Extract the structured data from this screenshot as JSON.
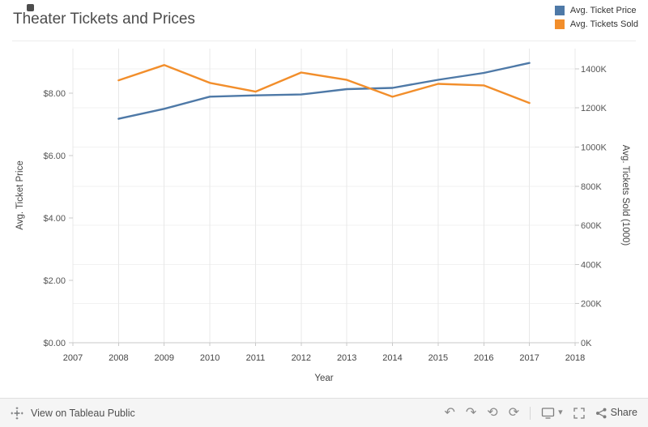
{
  "header": {
    "title": "Theater Tickets and Prices"
  },
  "legend": {
    "items": [
      {
        "label": "Avg. Ticket Price",
        "color": "#4e79a7"
      },
      {
        "label": "Avg. Tickets Sold",
        "color": "#f28e2b"
      }
    ]
  },
  "chart_data": {
    "type": "line",
    "title": "Theater Tickets and Prices",
    "xlabel": "Year",
    "x_tick_labels": [
      "2007",
      "2008",
      "2009",
      "2010",
      "2011",
      "2012",
      "2013",
      "2014",
      "2015",
      "2016",
      "2017",
      "2018"
    ],
    "x": [
      2008,
      2009,
      2010,
      2011,
      2012,
      2013,
      2014,
      2015,
      2016,
      2017
    ],
    "series": [
      {
        "name": "Avg. Ticket Price",
        "axis": "left",
        "color": "#4e79a7",
        "values": [
          7.18,
          7.5,
          7.89,
          7.93,
          7.96,
          8.13,
          8.17,
          8.43,
          8.65,
          8.97
        ]
      },
      {
        "name": "Avg. Tickets Sold",
        "axis": "right",
        "color": "#f28e2b",
        "values": [
          1341,
          1419,
          1328,
          1283,
          1381,
          1343,
          1257,
          1323,
          1315,
          1225
        ]
      }
    ],
    "left_axis": {
      "label": "Avg. Ticket Price",
      "range": [
        0,
        9.43
      ],
      "ticks": [
        {
          "value": 0,
          "label": "$0.00"
        },
        {
          "value": 2,
          "label": "$2.00"
        },
        {
          "value": 4,
          "label": "$4.00"
        },
        {
          "value": 6,
          "label": "$6.00"
        },
        {
          "value": 8,
          "label": "$8.00"
        }
      ]
    },
    "right_axis": {
      "label": "Avg. Tickets Sold (1000)",
      "range": [
        0,
        1503
      ],
      "ticks": [
        {
          "value": 0,
          "label": "0K"
        },
        {
          "value": 200,
          "label": "200K"
        },
        {
          "value": 400,
          "label": "400K"
        },
        {
          "value": 600,
          "label": "600K"
        },
        {
          "value": 800,
          "label": "800K"
        },
        {
          "value": 1000,
          "label": "1000K"
        },
        {
          "value": 1200,
          "label": "1200K"
        },
        {
          "value": 1400,
          "label": "1400K"
        }
      ]
    },
    "grid": true,
    "legend_position": "top-right"
  },
  "toolbar": {
    "view_on_label": "View on Tableau Public",
    "share_label": "Share",
    "icons": {
      "undo": "↶",
      "redo": "↷",
      "reset": "⟲",
      "refresh": "⟳",
      "caret_down": "▾"
    }
  }
}
